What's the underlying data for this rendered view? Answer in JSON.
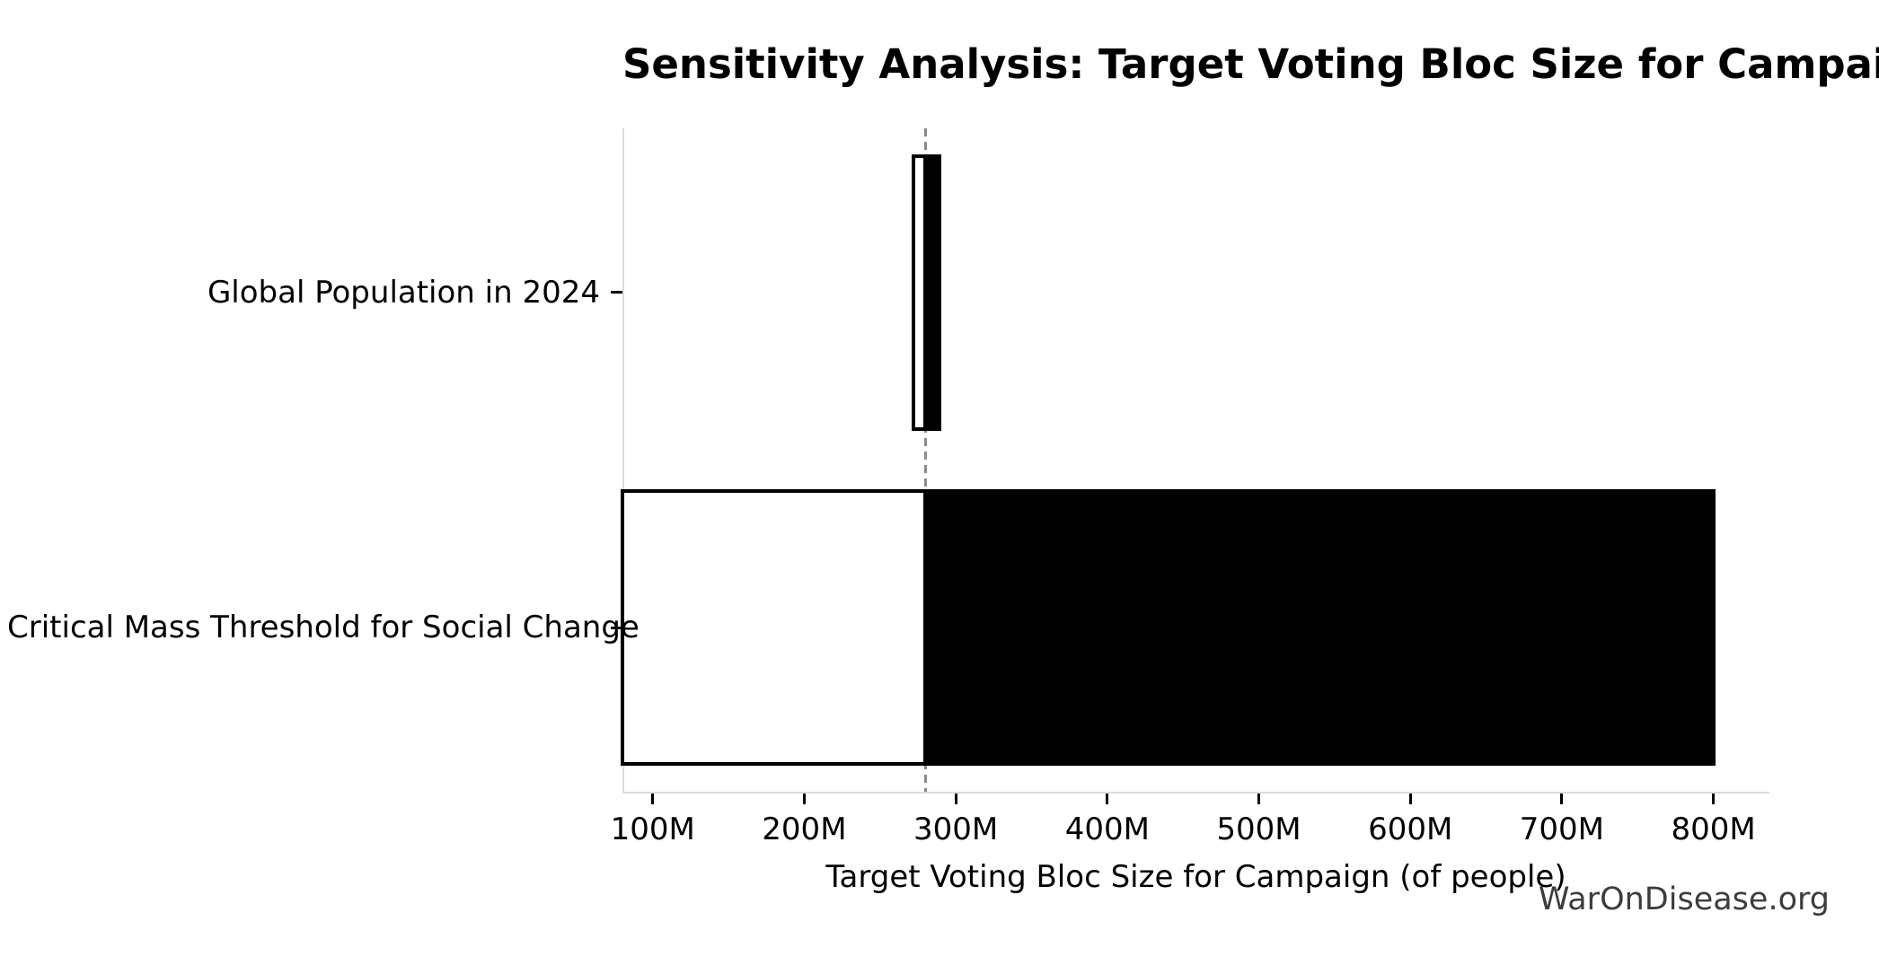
{
  "watermark": "WarOnDisease.org",
  "chart_data": {
    "type": "bar",
    "subtype": "horizontal-tornado-sensitivity",
    "title": "Sensitivity Analysis: Target Voting Bloc Size for Campaign",
    "xlabel": "Target Voting Bloc Size for Campaign (of people)",
    "ylabel": "",
    "unit": "millions of people",
    "grid": false,
    "legend": "none",
    "xlim": [
      80,
      837
    ],
    "x_ticks": {
      "values": [
        100,
        200,
        300,
        400,
        500,
        600,
        700,
        800
      ],
      "labels": [
        "100M",
        "200M",
        "300M",
        "400M",
        "500M",
        "600M",
        "700M",
        "800M"
      ]
    },
    "baseline": {
      "value": 280,
      "style": "dashed",
      "color": "#8a8a8a"
    },
    "rows": [
      {
        "label": "Global Population in 2024",
        "low": 272,
        "high": 289
      },
      {
        "label": "Critical Mass Threshold for Social Change",
        "low": 80,
        "high": 800
      }
    ],
    "colors": {
      "low_segment_fill": "#ffffff",
      "high_segment_fill": "#000000",
      "bar_edge": "#000000",
      "spine": "#dcdcdc",
      "tick": "#000000",
      "text": "#000000",
      "watermark": "#3d3d3d",
      "background": "#ffffff"
    }
  }
}
